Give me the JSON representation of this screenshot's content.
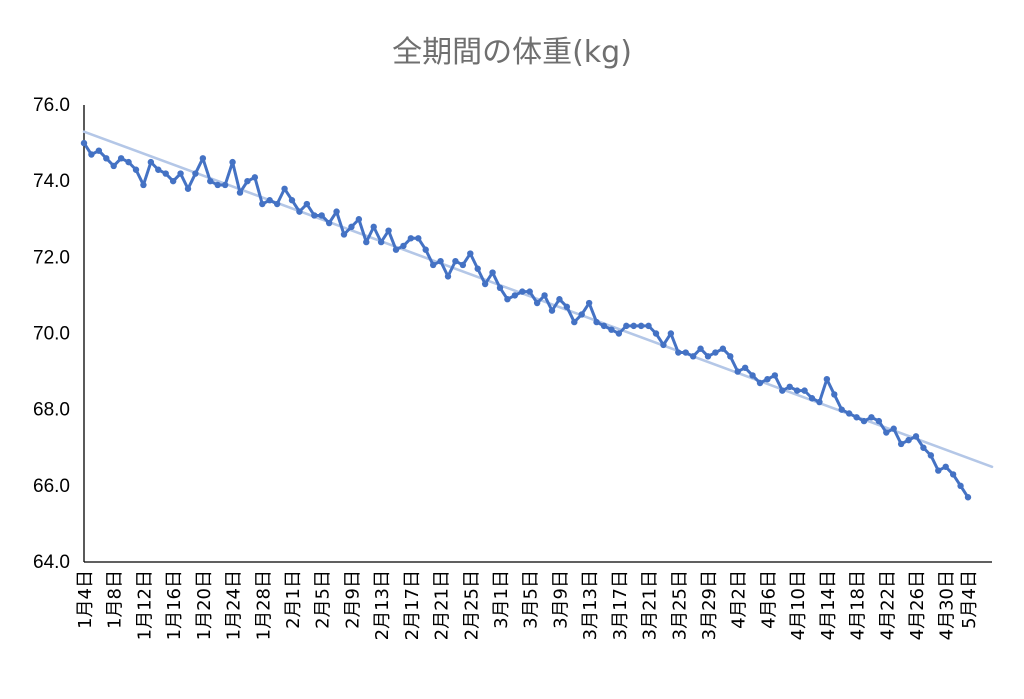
{
  "chart_data": {
    "type": "line",
    "title": "全期間の体重(kg)",
    "xlabel": "",
    "ylabel": "",
    "ylim": [
      64.0,
      76.0
    ],
    "yticks": [
      "64.0",
      "66.0",
      "68.0",
      "70.0",
      "72.0",
      "74.0",
      "76.0"
    ],
    "x_tick_labels": [
      "1月4日",
      "1月8日",
      "1月12日",
      "1月16日",
      "1月20日",
      "1月24日",
      "1月28日",
      "2月1日",
      "2月5日",
      "2月9日",
      "2月13日",
      "2月17日",
      "2月21日",
      "2月25日",
      "3月1日",
      "3月5日",
      "3月9日",
      "3月13日",
      "3月17日",
      "3月21日",
      "3月25日",
      "3月29日",
      "4月2日",
      "4月6日",
      "4月10日",
      "4月14日",
      "4月18日",
      "4月22日",
      "4月26日",
      "4月30日",
      "5月4日"
    ],
    "grid": false,
    "legend": "none",
    "start_date": "1月4日",
    "end_date": "5月4日",
    "series": [
      {
        "values": [
          75.0,
          74.7,
          74.8,
          74.6,
          74.4,
          74.6,
          74.5,
          74.3,
          73.9,
          74.5,
          74.3,
          74.2,
          74.0,
          74.2,
          73.8,
          74.2,
          74.6,
          74.0,
          73.9,
          73.9,
          74.5,
          73.7,
          74.0,
          74.1,
          73.4,
          73.5,
          73.4,
          73.8,
          73.5,
          73.2,
          73.4,
          73.1,
          73.1,
          72.9,
          73.2,
          72.6,
          72.8,
          73.0,
          72.4,
          72.8,
          72.4,
          72.7,
          72.2,
          72.3,
          72.5,
          72.5,
          72.2,
          71.8,
          71.9,
          71.5,
          71.9,
          71.8,
          72.1,
          71.7,
          71.3,
          71.6,
          71.2,
          70.9,
          71.0,
          71.1,
          71.1,
          70.8,
          71.0,
          70.6,
          70.9,
          70.7,
          70.3,
          70.5,
          70.8,
          70.3,
          70.2,
          70.1,
          70.0,
          70.2,
          70.2,
          70.2,
          70.2,
          70.0,
          69.7,
          70.0,
          69.5,
          69.5,
          69.4,
          69.6,
          69.4,
          69.5,
          69.6,
          69.4,
          69.0,
          69.1,
          68.9,
          68.7,
          68.8,
          68.9,
          68.5,
          68.6,
          68.5,
          68.5,
          68.3,
          68.2,
          68.8,
          68.4,
          68.0,
          67.9,
          67.8,
          67.7,
          67.8,
          67.7,
          67.4,
          67.5,
          67.1,
          67.2,
          67.3,
          67.0,
          66.8,
          66.4,
          66.5,
          66.3,
          66.0,
          65.7
        ],
        "color": "#4472c4"
      }
    ],
    "trendline": {
      "type": "linear",
      "start": 75.3,
      "end": 66.5,
      "color": "#b4c7e7"
    }
  }
}
